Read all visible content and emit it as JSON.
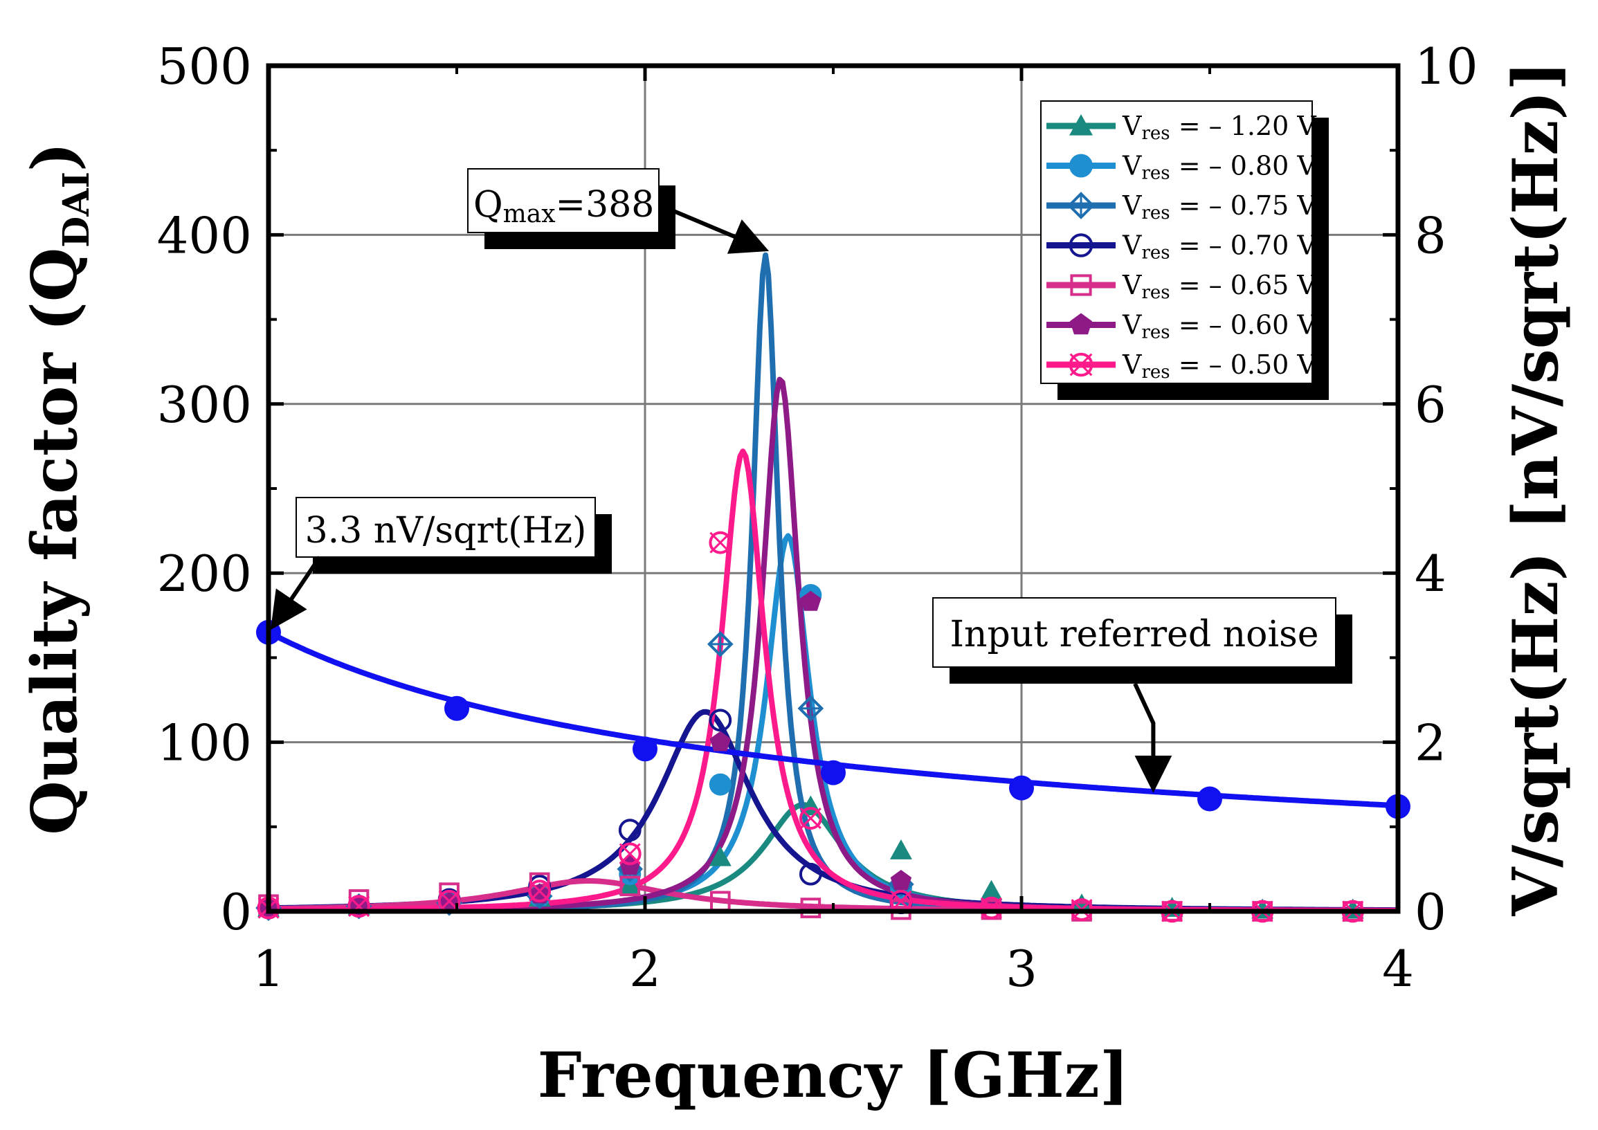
{
  "chart_data": {
    "type": "line",
    "title": "",
    "xlabel": "Frequency [GHz]",
    "ylabel": "Quality factor (Q",
    "ylabel_sub": "DAI",
    "ylabel_close": ")",
    "y2label": "V/sqrt(Hz) [nV/sqrt(Hz)]",
    "xlim": [
      1,
      4
    ],
    "ylim": [
      0,
      500
    ],
    "y2lim": [
      0,
      10
    ],
    "x_ticks": [
      "1",
      "2",
      "3",
      "4"
    ],
    "y_ticks": [
      "0",
      "100",
      "200",
      "300",
      "400",
      "500"
    ],
    "y2_ticks": [
      "0",
      "2",
      "4",
      "6",
      "8",
      "10"
    ],
    "grid": true,
    "legend_position": "top-right",
    "series": [
      {
        "name": "Vres = – 1.20 V",
        "legend_main": "V",
        "legend_sub": "res",
        "legend_rest": " = – 1.20 V",
        "color": "#1a8a80",
        "marker": "triangle",
        "axis": "left",
        "curve": {
          "type": "lorentz",
          "f0": 2.42,
          "peak": 63,
          "width": 0.26
        },
        "markers": [
          [
            1.0,
            2
          ],
          [
            1.24,
            3
          ],
          [
            1.48,
            5
          ],
          [
            1.72,
            8
          ],
          [
            1.96,
            15
          ],
          [
            2.2,
            32
          ],
          [
            2.44,
            62
          ],
          [
            2.68,
            36
          ],
          [
            2.92,
            12
          ],
          [
            3.16,
            4
          ],
          [
            3.4,
            2
          ],
          [
            3.64,
            1
          ],
          [
            3.88,
            1
          ]
        ]
      },
      {
        "name": "Vres = – 0.80 V",
        "legend_main": "V",
        "legend_sub": "res",
        "legend_rest": " = – 0.80 V",
        "color": "#1e8fd0",
        "marker": "circle-filled",
        "axis": "left",
        "curve": {
          "type": "lorentz",
          "f0": 2.38,
          "peak": 222,
          "width": 0.14
        },
        "markers": [
          [
            1.0,
            2
          ],
          [
            1.24,
            3
          ],
          [
            1.48,
            5
          ],
          [
            1.72,
            9
          ],
          [
            1.96,
            22
          ],
          [
            2.2,
            75
          ],
          [
            2.44,
            187
          ],
          [
            2.68,
            14
          ]
        ]
      },
      {
        "name": "Vres = – 0.75 V",
        "legend_main": "V",
        "legend_sub": "res",
        "legend_rest": " = – 0.75 V",
        "color": "#1f6fb0",
        "marker": "diamond-cross",
        "axis": "left",
        "curve": {
          "type": "lorentz",
          "f0": 2.32,
          "peak": 388,
          "width": 0.085
        },
        "markers": [
          [
            1.0,
            2
          ],
          [
            1.24,
            3
          ],
          [
            1.48,
            5
          ],
          [
            1.72,
            9
          ],
          [
            1.96,
            25
          ],
          [
            2.2,
            158
          ],
          [
            2.44,
            120
          ],
          [
            2.68,
            16
          ]
        ]
      },
      {
        "name": "Vres = – 0.70 V",
        "legend_main": "V",
        "legend_sub": "res",
        "legend_rest": " = – 0.70 V",
        "color": "#14158f",
        "marker": "circle-open",
        "axis": "left",
        "curve": {
          "type": "lorentz",
          "f0": 2.16,
          "peak": 118,
          "width": 0.3
        },
        "markers": [
          [
            1.0,
            2
          ],
          [
            1.24,
            3
          ],
          [
            1.48,
            7
          ],
          [
            1.72,
            15
          ],
          [
            1.96,
            48
          ],
          [
            2.2,
            113
          ],
          [
            2.44,
            22
          ],
          [
            2.68,
            5
          ]
        ]
      },
      {
        "name": "Vres = – 0.65 V",
        "legend_main": "V",
        "legend_sub": "res",
        "legend_rest": " = – 0.65 V",
        "color": "#d62e8a",
        "marker": "square-open",
        "axis": "left",
        "curve": {
          "type": "lorentz",
          "f0": 1.85,
          "peak": 18,
          "width": 0.52
        },
        "markers": [
          [
            1.0,
            4
          ],
          [
            1.24,
            7
          ],
          [
            1.48,
            11
          ],
          [
            1.72,
            17
          ],
          [
            1.96,
            15
          ],
          [
            2.2,
            6
          ],
          [
            2.44,
            2
          ],
          [
            2.68,
            1
          ],
          [
            2.92,
            1
          ],
          [
            3.16,
            0
          ],
          [
            3.4,
            0
          ],
          [
            3.64,
            0
          ],
          [
            3.88,
            0
          ]
        ]
      },
      {
        "name": "Vres = – 0.60 V",
        "legend_main": "V",
        "legend_sub": "res",
        "legend_rest": " = – 0.60 V",
        "color": "#8e1a87",
        "marker": "pentagon",
        "axis": "left",
        "curve": {
          "type": "lorentz",
          "f0": 2.36,
          "peak": 315,
          "width": 0.12
        },
        "markers": [
          [
            1.0,
            2
          ],
          [
            1.24,
            3
          ],
          [
            1.48,
            5
          ],
          [
            1.72,
            10
          ],
          [
            1.96,
            27
          ],
          [
            2.2,
            100
          ],
          [
            2.44,
            183
          ],
          [
            2.68,
            18
          ]
        ]
      },
      {
        "name": "Vres = – 0.50 V",
        "legend_main": "V",
        "legend_sub": "res",
        "legend_rest": " = – 0.50 V",
        "color": "#ff1a8c",
        "marker": "circle-x",
        "axis": "left",
        "curve": {
          "type": "lorentz",
          "f0": 2.26,
          "peak": 272,
          "width": 0.14
        },
        "markers": [
          [
            1.0,
            2
          ],
          [
            1.24,
            3
          ],
          [
            1.48,
            6
          ],
          [
            1.72,
            12
          ],
          [
            1.96,
            34
          ],
          [
            2.2,
            218
          ],
          [
            2.44,
            55
          ],
          [
            2.68,
            6
          ],
          [
            2.92,
            2
          ],
          [
            3.16,
            1
          ],
          [
            3.4,
            0
          ],
          [
            3.64,
            0
          ],
          [
            3.88,
            0
          ]
        ]
      },
      {
        "name": "Input referred noise",
        "color": "#1010f0",
        "marker": "circle-filled",
        "axis": "right",
        "curve": {
          "type": "power",
          "a": 3.3,
          "exp": -0.7
        },
        "markers": [
          [
            1.0,
            3.3
          ],
          [
            1.5,
            2.4
          ],
          [
            2.0,
            1.92
          ],
          [
            2.5,
            1.64
          ],
          [
            3.0,
            1.46
          ],
          [
            3.5,
            1.33
          ],
          [
            4.0,
            1.24
          ]
        ]
      }
    ],
    "annotations": [
      {
        "id": "qmax",
        "main": "Q",
        "sub": "max",
        "rest": "=388",
        "target": [
          2.32,
          388
        ],
        "axis": "left"
      },
      {
        "id": "noise-start",
        "text": "3.3 nV/sqrt(Hz)",
        "target": [
          1.0,
          3.3
        ],
        "axis": "right"
      },
      {
        "id": "noise-label",
        "text": "Input referred noise",
        "target": [
          3.35,
          1.38
        ],
        "axis": "right"
      }
    ]
  }
}
